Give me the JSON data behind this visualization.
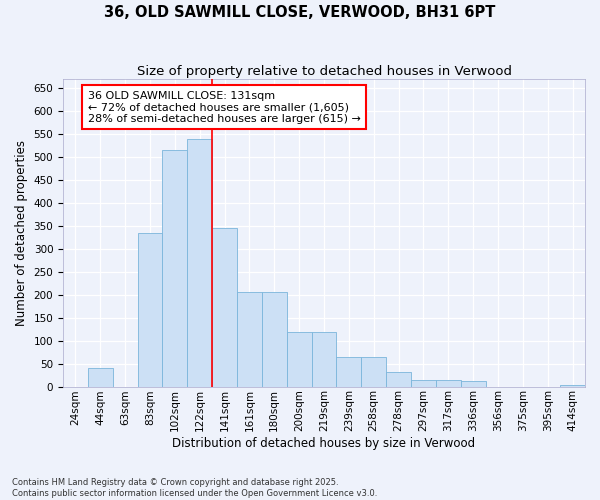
{
  "title": "36, OLD SAWMILL CLOSE, VERWOOD, BH31 6PT",
  "subtitle": "Size of property relative to detached houses in Verwood",
  "xlabel": "Distribution of detached houses by size in Verwood",
  "ylabel": "Number of detached properties",
  "bin_labels": [
    "24sqm",
    "44sqm",
    "63sqm",
    "83sqm",
    "102sqm",
    "122sqm",
    "141sqm",
    "161sqm",
    "180sqm",
    "200sqm",
    "219sqm",
    "239sqm",
    "258sqm",
    "278sqm",
    "297sqm",
    "317sqm",
    "336sqm",
    "356sqm",
    "375sqm",
    "395sqm",
    "414sqm"
  ],
  "bar_heights": [
    0,
    40,
    0,
    335,
    515,
    540,
    345,
    205,
    205,
    118,
    118,
    65,
    65,
    32,
    15,
    15,
    12,
    0,
    0,
    0,
    3
  ],
  "bar_color": "#cce0f5",
  "bar_edge_color": "#7ab5db",
  "property_line_index": 5.35,
  "annotation_text": "36 OLD SAWMILL CLOSE: 131sqm\n← 72% of detached houses are smaller (1,605)\n28% of semi-detached houses are larger (615) →",
  "annotation_box_color": "white",
  "annotation_box_edge_color": "red",
  "vline_color": "red",
  "ylim": [
    0,
    670
  ],
  "yticks": [
    0,
    50,
    100,
    150,
    200,
    250,
    300,
    350,
    400,
    450,
    500,
    550,
    600,
    650
  ],
  "background_color": "#eef2fb",
  "grid_color": "white",
  "footer_text": "Contains HM Land Registry data © Crown copyright and database right 2025.\nContains public sector information licensed under the Open Government Licence v3.0.",
  "title_fontsize": 10.5,
  "subtitle_fontsize": 9.5,
  "axis_label_fontsize": 8.5,
  "tick_fontsize": 7.5,
  "annotation_fontsize": 8,
  "footer_fontsize": 6
}
